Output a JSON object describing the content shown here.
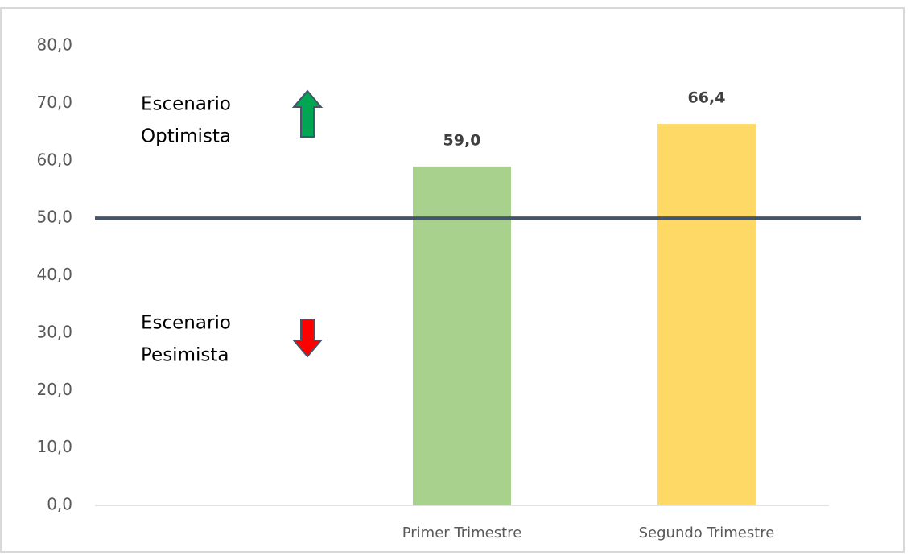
{
  "chart_data": {
    "type": "bar",
    "categories": [
      null,
      "Primer Trimestre",
      "Segundo Trimestre"
    ],
    "values": [
      null,
      59.0,
      66.4
    ],
    "value_labels": [
      null,
      "59,0",
      "66,4"
    ],
    "colors": [
      null,
      "#a9d18e",
      "#ffd966"
    ],
    "ylim": [
      0,
      80
    ],
    "yticks": [
      {
        "value": 0,
        "label": "0,0"
      },
      {
        "value": 10,
        "label": "10,0"
      },
      {
        "value": 20,
        "label": "20,0"
      },
      {
        "value": 30,
        "label": "30,0"
      },
      {
        "value": 40,
        "label": "40,0"
      },
      {
        "value": 50,
        "label": "50,0"
      },
      {
        "value": 60,
        "label": "60,0"
      },
      {
        "value": 70,
        "label": "70,0"
      },
      {
        "value": 80,
        "label": "80,0"
      }
    ],
    "grid": false,
    "reference_line": {
      "value": 50,
      "color": "#44546a"
    },
    "annotations": [
      [
        "Escenario",
        "Optimista"
      ],
      [
        "Escenario",
        "Pesimista"
      ]
    ]
  }
}
